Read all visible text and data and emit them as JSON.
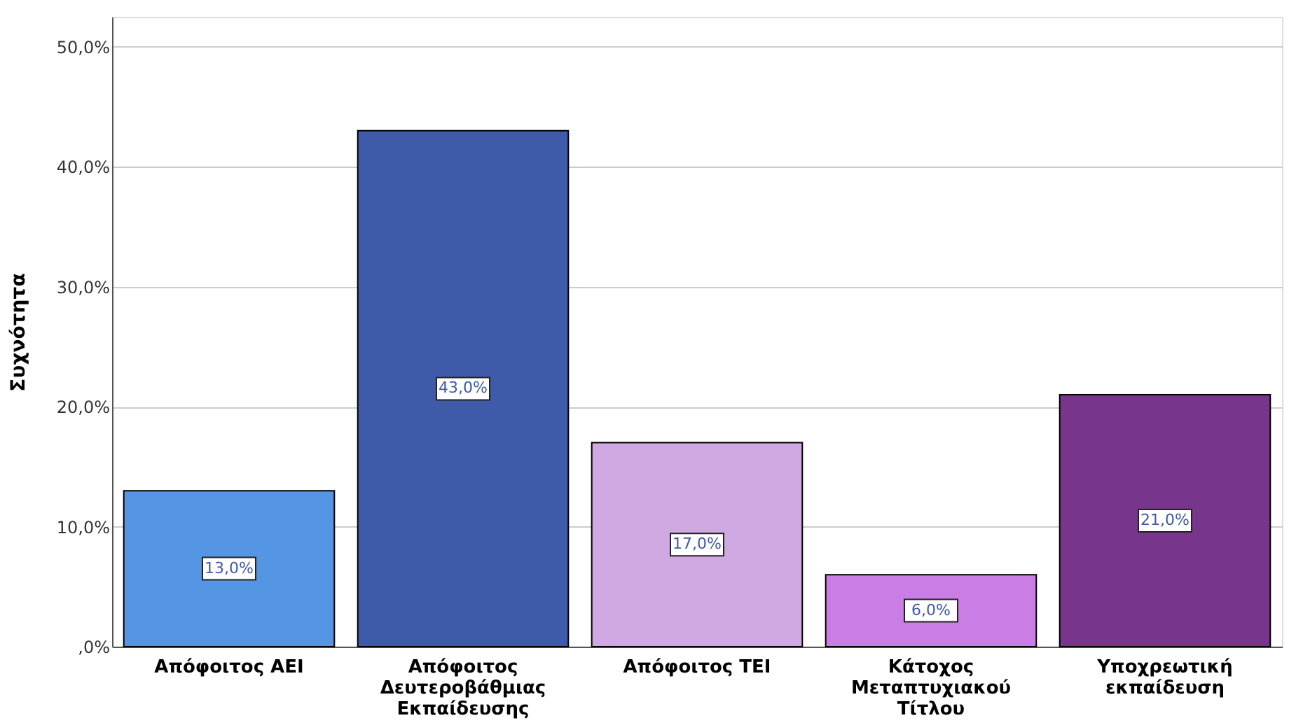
{
  "chart_data": {
    "type": "bar",
    "ylabel": "Συχνότητα",
    "categories": [
      "Απόφοιτος ΑΕΙ",
      "Απόφοιτος Δευτεροβάθμιας Εκπαίδευσης",
      "Απόφοιτος ΤΕΙ",
      "Κάτοχος Μεταπτυχιακού Τίτλου",
      "Υποχρεωτική εκπαίδευση"
    ],
    "values": [
      13,
      43,
      17,
      6,
      21
    ],
    "colors": [
      "#5496e3",
      "#3e5aa9",
      "#d0a9e3",
      "#c97de5",
      "#77368b"
    ],
    "value_labels": [
      "13,0%",
      "43,0%",
      "17,0%",
      "6,0%",
      "21,0%"
    ],
    "ylim": [
      0,
      52.5
    ],
    "yticks": [
      {
        "value": 0,
        "label": ",0%"
      },
      {
        "value": 10,
        "label": "10,0%"
      },
      {
        "value": 20,
        "label": "20,0%"
      },
      {
        "value": 30,
        "label": "30,0%"
      },
      {
        "value": 40,
        "label": "40,0%"
      },
      {
        "value": 50,
        "label": "50,0%"
      }
    ],
    "grid": "y"
  }
}
